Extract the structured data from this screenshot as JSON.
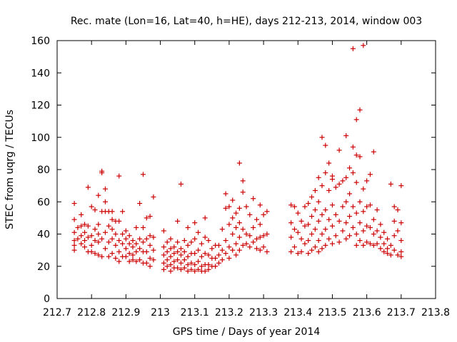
{
  "chart_data": {
    "type": "scatter",
    "title": "Rec. mate (Lon=16, Lat=40, h=HE), days 212-213, 2014, window 003",
    "xlabel": "GPS time / Days of year 2014",
    "ylabel": "STEC from uqrg / TECUs",
    "xlim": [
      212.7,
      213.8
    ],
    "ylim": [
      0,
      160
    ],
    "xticks": [
      "212.7",
      "212.8",
      "212.9",
      "213",
      "213.1",
      "213.2",
      "213.3",
      "213.4",
      "213.5",
      "213.6",
      "213.7",
      "213.8"
    ],
    "yticks": [
      "0",
      "20",
      "40",
      "60",
      "80",
      "100",
      "120",
      "140",
      "160"
    ],
    "grid": false,
    "marker": "+",
    "color": "#cc0000",
    "points": [
      [
        212.75,
        59
      ],
      [
        212.75,
        49
      ],
      [
        212.75,
        41
      ],
      [
        212.75,
        36
      ],
      [
        212.75,
        33
      ],
      [
        212.75,
        30
      ],
      [
        212.76,
        44
      ],
      [
        212.76,
        37
      ],
      [
        212.77,
        52
      ],
      [
        212.77,
        45
      ],
      [
        212.77,
        39
      ],
      [
        212.77,
        34
      ],
      [
        212.78,
        46
      ],
      [
        212.78,
        41
      ],
      [
        212.78,
        36
      ],
      [
        212.78,
        32
      ],
      [
        212.79,
        69
      ],
      [
        212.79,
        45
      ],
      [
        212.79,
        38
      ],
      [
        212.79,
        29
      ],
      [
        212.8,
        57
      ],
      [
        212.8,
        39
      ],
      [
        212.8,
        33
      ],
      [
        212.8,
        29
      ],
      [
        212.81,
        55
      ],
      [
        212.81,
        43
      ],
      [
        212.81,
        36
      ],
      [
        212.81,
        28
      ],
      [
        212.82,
        64
      ],
      [
        212.82,
        46
      ],
      [
        212.82,
        40
      ],
      [
        212.82,
        35
      ],
      [
        212.82,
        27
      ],
      [
        212.83,
        79
      ],
      [
        212.83,
        78
      ],
      [
        212.83,
        54
      ],
      [
        212.83,
        37
      ],
      [
        212.83,
        26
      ],
      [
        212.84,
        68
      ],
      [
        212.84,
        60
      ],
      [
        212.84,
        54
      ],
      [
        212.84,
        41
      ],
      [
        212.84,
        31
      ],
      [
        212.85,
        54
      ],
      [
        212.85,
        45
      ],
      [
        212.85,
        35
      ],
      [
        212.85,
        26
      ],
      [
        212.86,
        54
      ],
      [
        212.86,
        49
      ],
      [
        212.86,
        43
      ],
      [
        212.86,
        37
      ],
      [
        212.86,
        28
      ],
      [
        212.87,
        48
      ],
      [
        212.87,
        40
      ],
      [
        212.87,
        33
      ],
      [
        212.87,
        25
      ],
      [
        212.88,
        76
      ],
      [
        212.88,
        48
      ],
      [
        212.88,
        36
      ],
      [
        212.88,
        29
      ],
      [
        212.88,
        23
      ],
      [
        212.89,
        54
      ],
      [
        212.89,
        40
      ],
      [
        212.89,
        34
      ],
      [
        212.89,
        26
      ],
      [
        212.9,
        42
      ],
      [
        212.9,
        37
      ],
      [
        212.9,
        31
      ],
      [
        212.9,
        26
      ],
      [
        212.91,
        39
      ],
      [
        212.91,
        34
      ],
      [
        212.91,
        28
      ],
      [
        212.91,
        23
      ],
      [
        212.92,
        36
      ],
      [
        212.92,
        32
      ],
      [
        212.92,
        27
      ],
      [
        212.92,
        24
      ],
      [
        212.93,
        44
      ],
      [
        212.93,
        34
      ],
      [
        212.93,
        29
      ],
      [
        212.93,
        23
      ],
      [
        212.94,
        59
      ],
      [
        212.94,
        37
      ],
      [
        212.94,
        31
      ],
      [
        212.94,
        24
      ],
      [
        212.95,
        77
      ],
      [
        212.95,
        44
      ],
      [
        212.95,
        35
      ],
      [
        212.95,
        29
      ],
      [
        212.95,
        22
      ],
      [
        212.96,
        50
      ],
      [
        212.96,
        37
      ],
      [
        212.96,
        29
      ],
      [
        212.96,
        22
      ],
      [
        212.97,
        51
      ],
      [
        212.97,
        39
      ],
      [
        212.97,
        33
      ],
      [
        212.97,
        25
      ],
      [
        212.97,
        20
      ],
      [
        212.98,
        63
      ],
      [
        212.98,
        38
      ],
      [
        212.98,
        30
      ],
      [
        212.98,
        24
      ],
      [
        213.01,
        42
      ],
      [
        213.01,
        32
      ],
      [
        213.01,
        27
      ],
      [
        213.01,
        22
      ],
      [
        213.01,
        18
      ],
      [
        213.02,
        35
      ],
      [
        213.02,
        29
      ],
      [
        213.02,
        24
      ],
      [
        213.02,
        20
      ],
      [
        213.03,
        37
      ],
      [
        213.03,
        31
      ],
      [
        213.03,
        26
      ],
      [
        213.03,
        21
      ],
      [
        213.03,
        17
      ],
      [
        213.04,
        32
      ],
      [
        213.04,
        28
      ],
      [
        213.04,
        23
      ],
      [
        213.04,
        19
      ],
      [
        213.05,
        48
      ],
      [
        213.05,
        35
      ],
      [
        213.05,
        29
      ],
      [
        213.05,
        24
      ],
      [
        213.05,
        19
      ],
      [
        213.06,
        71
      ],
      [
        213.06,
        31
      ],
      [
        213.06,
        27
      ],
      [
        213.06,
        22
      ],
      [
        213.06,
        18
      ],
      [
        213.07,
        36
      ],
      [
        213.07,
        29
      ],
      [
        213.07,
        24
      ],
      [
        213.07,
        19
      ],
      [
        213.08,
        44
      ],
      [
        213.08,
        33
      ],
      [
        213.08,
        26
      ],
      [
        213.08,
        21
      ],
      [
        213.08,
        17
      ],
      [
        213.09,
        35
      ],
      [
        213.09,
        28
      ],
      [
        213.09,
        22
      ],
      [
        213.09,
        18
      ],
      [
        213.1,
        47
      ],
      [
        213.1,
        37
      ],
      [
        213.1,
        28
      ],
      [
        213.1,
        21
      ],
      [
        213.1,
        17
      ],
      [
        213.11,
        41
      ],
      [
        213.11,
        30
      ],
      [
        213.11,
        23
      ],
      [
        213.11,
        18
      ],
      [
        213.12,
        34
      ],
      [
        213.12,
        26
      ],
      [
        213.12,
        20
      ],
      [
        213.12,
        17
      ],
      [
        213.13,
        50
      ],
      [
        213.13,
        38
      ],
      [
        213.13,
        28
      ],
      [
        213.13,
        21
      ],
      [
        213.13,
        17
      ],
      [
        213.14,
        36
      ],
      [
        213.14,
        27
      ],
      [
        213.14,
        21
      ],
      [
        213.14,
        18
      ],
      [
        213.15,
        31
      ],
      [
        213.15,
        25
      ],
      [
        213.15,
        20
      ],
      [
        213.16,
        33
      ],
      [
        213.16,
        25
      ],
      [
        213.16,
        20
      ],
      [
        213.17,
        33
      ],
      [
        213.17,
        27
      ],
      [
        213.17,
        22
      ],
      [
        213.18,
        43
      ],
      [
        213.18,
        30
      ],
      [
        213.18,
        24
      ],
      [
        213.19,
        65
      ],
      [
        213.19,
        56
      ],
      [
        213.19,
        36
      ],
      [
        213.19,
        28
      ],
      [
        213.2,
        57
      ],
      [
        213.2,
        46
      ],
      [
        213.2,
        32
      ],
      [
        213.2,
        25
      ],
      [
        213.21,
        61
      ],
      [
        213.21,
        50
      ],
      [
        213.21,
        40
      ],
      [
        213.21,
        30
      ],
      [
        213.22,
        53
      ],
      [
        213.22,
        44
      ],
      [
        213.22,
        34
      ],
      [
        213.22,
        27
      ],
      [
        213.23,
        84
      ],
      [
        213.23,
        56
      ],
      [
        213.23,
        47
      ],
      [
        213.23,
        38
      ],
      [
        213.23,
        30
      ],
      [
        213.24,
        73
      ],
      [
        213.24,
        66
      ],
      [
        213.24,
        43
      ],
      [
        213.24,
        33
      ],
      [
        213.25,
        57
      ],
      [
        213.25,
        40
      ],
      [
        213.25,
        34
      ],
      [
        213.26,
        52
      ],
      [
        213.26,
        39
      ],
      [
        213.26,
        32
      ],
      [
        213.27,
        62
      ],
      [
        213.27,
        44
      ],
      [
        213.27,
        35
      ],
      [
        213.28,
        49
      ],
      [
        213.28,
        37
      ],
      [
        213.28,
        31
      ],
      [
        213.29,
        58
      ],
      [
        213.29,
        46
      ],
      [
        213.29,
        38
      ],
      [
        213.29,
        30
      ],
      [
        213.3,
        52
      ],
      [
        213.3,
        39
      ],
      [
        213.3,
        32
      ],
      [
        213.31,
        54
      ],
      [
        213.31,
        40
      ],
      [
        213.31,
        29
      ],
      [
        213.38,
        58
      ],
      [
        213.38,
        47
      ],
      [
        213.38,
        38
      ],
      [
        213.38,
        29
      ],
      [
        213.39,
        57
      ],
      [
        213.39,
        43
      ],
      [
        213.39,
        32
      ],
      [
        213.4,
        53
      ],
      [
        213.4,
        41
      ],
      [
        213.4,
        28
      ],
      [
        213.41,
        48
      ],
      [
        213.41,
        37
      ],
      [
        213.41,
        29
      ],
      [
        213.42,
        57
      ],
      [
        213.42,
        45
      ],
      [
        213.42,
        34
      ],
      [
        213.43,
        59
      ],
      [
        213.43,
        46
      ],
      [
        213.43,
        36
      ],
      [
        213.43,
        28
      ],
      [
        213.44,
        63
      ],
      [
        213.44,
        51
      ],
      [
        213.44,
        40
      ],
      [
        213.44,
        30
      ],
      [
        213.45,
        67
      ],
      [
        213.45,
        55
      ],
      [
        213.45,
        43
      ],
      [
        213.45,
        32
      ],
      [
        213.46,
        75
      ],
      [
        213.46,
        60
      ],
      [
        213.46,
        48
      ],
      [
        213.46,
        36
      ],
      [
        213.46,
        29
      ],
      [
        213.47,
        100
      ],
      [
        213.47,
        70
      ],
      [
        213.47,
        52
      ],
      [
        213.47,
        40
      ],
      [
        213.47,
        31
      ],
      [
        213.48,
        95
      ],
      [
        213.48,
        78
      ],
      [
        213.48,
        55
      ],
      [
        213.48,
        43
      ],
      [
        213.48,
        33
      ],
      [
        213.49,
        84
      ],
      [
        213.49,
        67
      ],
      [
        213.49,
        49
      ],
      [
        213.49,
        37
      ],
      [
        213.5,
        76
      ],
      [
        213.5,
        74
      ],
      [
        213.5,
        58
      ],
      [
        213.5,
        45
      ],
      [
        213.5,
        34
      ],
      [
        213.51,
        69
      ],
      [
        213.51,
        52
      ],
      [
        213.51,
        39
      ],
      [
        213.52,
        92
      ],
      [
        213.52,
        71
      ],
      [
        213.52,
        48
      ],
      [
        213.52,
        35
      ],
      [
        213.53,
        73
      ],
      [
        213.53,
        57
      ],
      [
        213.53,
        42
      ],
      [
        213.54,
        101
      ],
      [
        213.54,
        75
      ],
      [
        213.54,
        60
      ],
      [
        213.54,
        47
      ],
      [
        213.54,
        37
      ],
      [
        213.55,
        81
      ],
      [
        213.55,
        65
      ],
      [
        213.55,
        51
      ],
      [
        213.55,
        39
      ],
      [
        213.56,
        155
      ],
      [
        213.56,
        94
      ],
      [
        213.56,
        78
      ],
      [
        213.56,
        57
      ],
      [
        213.56,
        44
      ],
      [
        213.57,
        111
      ],
      [
        213.57,
        89
      ],
      [
        213.57,
        72
      ],
      [
        213.57,
        53
      ],
      [
        213.57,
        40
      ],
      [
        213.57,
        33
      ],
      [
        213.58,
        117
      ],
      [
        213.58,
        88
      ],
      [
        213.58,
        60
      ],
      [
        213.58,
        47
      ],
      [
        213.58,
        36
      ],
      [
        213.59,
        157
      ],
      [
        213.59,
        68
      ],
      [
        213.59,
        54
      ],
      [
        213.59,
        42
      ],
      [
        213.59,
        33
      ],
      [
        213.6,
        73
      ],
      [
        213.6,
        57
      ],
      [
        213.6,
        45
      ],
      [
        213.6,
        35
      ],
      [
        213.61,
        77
      ],
      [
        213.61,
        58
      ],
      [
        213.61,
        44
      ],
      [
        213.61,
        34
      ],
      [
        213.62,
        91
      ],
      [
        213.62,
        49
      ],
      [
        213.62,
        40
      ],
      [
        213.62,
        33
      ],
      [
        213.63,
        55
      ],
      [
        213.63,
        42
      ],
      [
        213.63,
        34
      ],
      [
        213.64,
        46
      ],
      [
        213.64,
        38
      ],
      [
        213.64,
        31
      ],
      [
        213.65,
        41
      ],
      [
        213.65,
        34
      ],
      [
        213.65,
        29
      ],
      [
        213.66,
        37
      ],
      [
        213.66,
        31
      ],
      [
        213.66,
        28
      ],
      [
        213.67,
        71
      ],
      [
        213.67,
        33
      ],
      [
        213.67,
        27
      ],
      [
        213.68,
        57
      ],
      [
        213.68,
        48
      ],
      [
        213.68,
        39
      ],
      [
        213.68,
        30
      ],
      [
        213.69,
        55
      ],
      [
        213.69,
        42
      ],
      [
        213.69,
        27
      ],
      [
        213.7,
        70
      ],
      [
        213.7,
        47
      ],
      [
        213.7,
        36
      ],
      [
        213.7,
        29
      ],
      [
        213.7,
        26
      ]
    ]
  }
}
